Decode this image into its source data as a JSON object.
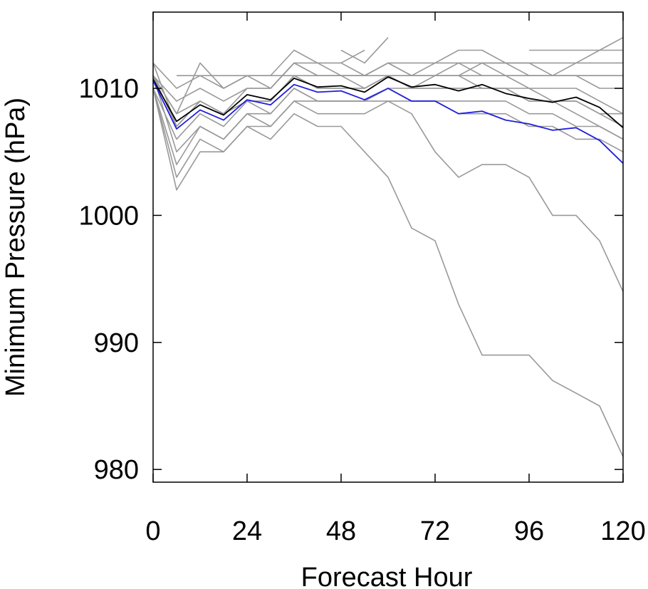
{
  "chart_data": {
    "type": "line",
    "title": "",
    "xlabel": "Forecast Hour",
    "ylabel": "Minimum Pressure (hPa)",
    "xlim": [
      0,
      120
    ],
    "ylim": [
      979,
      1016
    ],
    "xticks": [
      0,
      24,
      48,
      72,
      96,
      120
    ],
    "yticks": [
      980,
      990,
      1000,
      1010
    ],
    "xtick_labels": [
      "0",
      "24",
      "48",
      "72",
      "96",
      "120"
    ],
    "ytick_labels": [
      "980",
      "990",
      "1000",
      "1010"
    ],
    "grid": false,
    "legend": "none",
    "colors": {
      "member": "#999999",
      "mean": "#000000",
      "highlight": "#1f1fdd"
    },
    "members": [
      {
        "x": [
          0,
          6,
          12,
          18,
          24,
          30,
          36,
          42,
          48,
          54,
          60,
          66,
          72,
          78,
          84,
          90,
          96,
          102,
          108,
          114,
          120
        ],
        "y": [
          1011,
          1008,
          1009,
          1008,
          1009,
          1009,
          1011,
          1010,
          1010,
          1010,
          1011,
          1010,
          1010,
          1010,
          1010,
          1010,
          1009,
          1009,
          1009,
          1008,
          1007
        ]
      },
      {
        "x": [
          0,
          6,
          12,
          18,
          24,
          30,
          36,
          42,
          48,
          54,
          60,
          66,
          72,
          78,
          84,
          90,
          96,
          102,
          108,
          114,
          120
        ],
        "y": [
          1010,
          1006,
          1008,
          1007,
          1009,
          1008,
          1010,
          1009,
          1009,
          1009,
          1010,
          1009,
          1009,
          1008,
          1008,
          1008,
          1007,
          1007,
          1006,
          1006,
          1005
        ]
      },
      {
        "x": [
          0,
          6,
          12,
          18,
          24,
          30,
          36,
          42,
          48,
          54,
          60,
          66,
          72,
          78,
          84,
          90,
          96,
          102,
          108,
          114,
          120
        ],
        "y": [
          1010,
          1003,
          1006,
          1005,
          1007,
          1006,
          1008,
          1007,
          1007,
          1005,
          1003,
          999,
          998,
          993,
          989,
          989,
          989,
          987,
          986,
          985,
          981
        ]
      },
      {
        "x": [
          0,
          6,
          12,
          18,
          24,
          30,
          36,
          42,
          48,
          54,
          60,
          66,
          72,
          78,
          84,
          90,
          96,
          102,
          108,
          114,
          120
        ],
        "y": [
          1011,
          1005,
          1007,
          1006,
          1008,
          1007,
          1009,
          1008,
          1008,
          1008,
          1009,
          1008,
          1005,
          1003,
          1004,
          1004,
          1003,
          1000,
          1000,
          998,
          994
        ]
      },
      {
        "x": [
          0,
          6,
          12,
          18,
          24,
          30,
          36,
          42,
          48,
          54,
          60,
          66,
          72,
          78,
          84,
          90,
          96,
          102,
          108,
          114,
          120
        ],
        "y": [
          1012,
          1007,
          1009,
          1008,
          1009,
          1009,
          1011,
          1010,
          1010,
          1010,
          1011,
          1010,
          1010,
          1010,
          1010,
          1010,
          1009,
          1009,
          1008,
          1007,
          1006
        ]
      },
      {
        "x": [
          0,
          6,
          12,
          18,
          24,
          30,
          36,
          42,
          48,
          54,
          60,
          66,
          72,
          78,
          84,
          90,
          96,
          102,
          108,
          114,
          120
        ],
        "y": [
          1011,
          1009,
          1010,
          1009,
          1010,
          1010,
          1012,
          1011,
          1011,
          1011,
          1012,
          1011,
          1012,
          1012,
          1011,
          1011,
          1010,
          1010,
          1010,
          1009,
          1008
        ]
      },
      {
        "x": [
          0,
          6,
          12,
          18,
          24,
          30,
          36,
          42,
          48,
          54,
          60,
          66,
          72,
          78,
          84,
          90,
          96,
          102,
          108,
          114,
          120
        ],
        "y": [
          1012,
          1010,
          1011,
          1010,
          1011,
          1011,
          1013,
          1012,
          1012,
          1011,
          1012,
          1012,
          1012,
          1013,
          1013,
          1012,
          1012,
          1011,
          1011,
          1011,
          1011
        ]
      },
      {
        "x": [
          0,
          6,
          12,
          18,
          24,
          30,
          36,
          42,
          48,
          54,
          60,
          66,
          72,
          78,
          84,
          90,
          96,
          102,
          108,
          114,
          120
        ],
        "y": [
          1010,
          1004,
          1007,
          1006,
          1008,
          1008,
          1010,
          1009,
          1009,
          1009,
          1009,
          1009,
          1009,
          1009,
          1009,
          1009,
          1008,
          1008,
          1007,
          1007,
          1006
        ]
      },
      {
        "x": [
          0,
          6,
          12,
          18,
          24,
          30,
          36,
          42,
          48,
          54,
          60,
          66,
          72,
          78,
          84,
          90,
          96,
          102,
          108,
          114,
          120
        ],
        "y": [
          1011,
          1007,
          1009,
          1008,
          1010,
          1010,
          1012,
          1011,
          1011,
          1010,
          1011,
          1011,
          1011,
          1011,
          1012,
          1011,
          1011,
          1011,
          1012,
          1013,
          1014
        ]
      },
      {
        "x": [
          0,
          6,
          12,
          18,
          24,
          30,
          36,
          42,
          48,
          54,
          60,
          66,
          72,
          78,
          84,
          90,
          96,
          102,
          108,
          114,
          120
        ],
        "y": [
          1010,
          1002,
          1005,
          1005,
          1007,
          1007,
          1009,
          1009,
          1009,
          1009,
          1010,
          1010,
          1011,
          1011,
          1010,
          1010,
          1010,
          1009,
          1009,
          1008,
          1008
        ]
      },
      {
        "x": [
          0,
          6,
          12,
          18,
          24,
          30,
          36,
          42,
          48,
          54,
          60,
          66,
          72,
          78,
          84,
          90,
          96,
          102,
          108,
          114,
          120
        ],
        "y": [
          1011,
          1008,
          1012,
          1010,
          1011,
          1010,
          1012,
          1012,
          1011,
          1011,
          1012,
          1011,
          1011,
          1012,
          1012,
          1012,
          1011,
          1011,
          1011,
          1010,
          1010
        ]
      },
      {
        "x": [
          6,
          12,
          18,
          24,
          30,
          36,
          42,
          48,
          54,
          60,
          66,
          72,
          78,
          84,
          90,
          96,
          102,
          108,
          114,
          120
        ],
        "y": [
          1011,
          1011,
          1011,
          1011,
          1011,
          1011,
          1011,
          1011,
          1011,
          1011,
          1011,
          1011,
          1011,
          1011,
          1011,
          1011,
          1011,
          1011,
          1011,
          1011
        ]
      },
      {
        "x": [
          48,
          54,
          60
        ],
        "y": [
          1013,
          1012,
          1014
        ]
      },
      {
        "x": [
          48,
          54
        ],
        "y": [
          1012,
          1013
        ]
      },
      {
        "x": [
          96,
          102,
          108,
          114,
          120
        ],
        "y": [
          1013,
          1013,
          1013,
          1013,
          1013
        ]
      },
      {
        "x": [
          84,
          90,
          96,
          102,
          108,
          114,
          120
        ],
        "y": [
          1012,
          1012,
          1012,
          1012,
          1012,
          1012,
          1012
        ]
      }
    ],
    "series": [
      {
        "name": "",
        "role": "mean",
        "color": "#000000",
        "x": [
          0,
          6,
          12,
          18,
          24,
          30,
          36,
          42,
          48,
          54,
          60,
          66,
          72,
          78,
          84,
          90,
          96,
          102,
          108,
          114,
          120
        ],
        "y": [
          1010.7,
          1007.4,
          1008.7,
          1007.9,
          1009.5,
          1009.1,
          1010.8,
          1010.1,
          1010.2,
          1009.7,
          1010.9,
          1010.1,
          1010.3,
          1009.8,
          1010.3,
          1009.6,
          1009.2,
          1008.9,
          1009.3,
          1008.5,
          1006.9
        ]
      },
      {
        "name": "",
        "role": "highlight",
        "color": "#1f1fdd",
        "x": [
          0,
          6,
          12,
          18,
          24,
          30,
          36,
          42,
          48,
          54,
          60,
          66,
          72,
          78,
          84,
          90,
          96,
          102,
          108,
          114,
          120
        ],
        "y": [
          1010.6,
          1006.8,
          1008.3,
          1007.5,
          1009.1,
          1008.7,
          1010.3,
          1009.7,
          1009.8,
          1009.1,
          1010.0,
          1009.0,
          1009.0,
          1008.0,
          1008.2,
          1007.5,
          1007.2,
          1006.7,
          1006.9,
          1005.9,
          1004.1
        ]
      }
    ]
  }
}
